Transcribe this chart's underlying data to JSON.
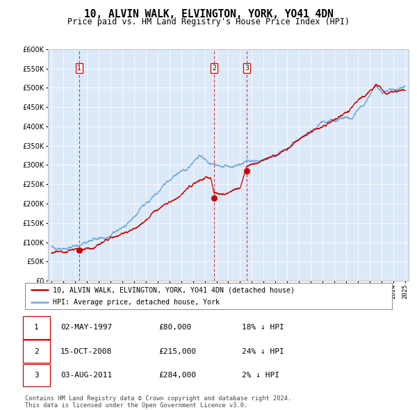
{
  "title": "10, ALVIN WALK, ELVINGTON, YORK, YO41 4DN",
  "subtitle": "Price paid vs. HM Land Registry's House Price Index (HPI)",
  "ylim": [
    0,
    600000
  ],
  "yticks": [
    0,
    50000,
    100000,
    150000,
    200000,
    250000,
    300000,
    350000,
    400000,
    450000,
    500000,
    550000,
    600000
  ],
  "x_start_year": 1995,
  "x_end_year": 2025,
  "plot_bg_color": "#dce9f8",
  "fig_bg_color": "#ffffff",
  "hpi_line_color": "#6fa8dc",
  "price_line_color": "#cc0000",
  "marker_color": "#cc0000",
  "dashed_line_color": "#cc0000",
  "sale_dates_decimal": [
    1997.33,
    2008.79,
    2011.58
  ],
  "sale_prices": [
    80000,
    215000,
    284000
  ],
  "sale_labels": [
    "1",
    "2",
    "3"
  ],
  "legend_label_price": "10, ALVIN WALK, ELVINGTON, YORK, YO41 4DN (detached house)",
  "legend_label_hpi": "HPI: Average price, detached house, York",
  "table_rows": [
    [
      "1",
      "02-MAY-1997",
      "£80,000",
      "18% ↓ HPI"
    ],
    [
      "2",
      "15-OCT-2008",
      "£215,000",
      "24% ↓ HPI"
    ],
    [
      "3",
      "03-AUG-2011",
      "£284,000",
      "2% ↓ HPI"
    ]
  ],
  "footnote": "Contains HM Land Registry data © Crown copyright and database right 2024.\nThis data is licensed under the Open Government Licence v3.0.",
  "hpi_anchors_x": [
    1995.0,
    1997.0,
    1998.5,
    2000.0,
    2002.0,
    2004.0,
    2005.5,
    2007.5,
    2008.5,
    2009.5,
    2010.5,
    2011.5,
    2013.0,
    2014.5,
    2016.0,
    2017.5,
    2019.0,
    2020.5,
    2021.5,
    2022.5,
    2023.0,
    2024.0,
    2025.0
  ],
  "hpi_anchors_y": [
    88000,
    95000,
    108000,
    130000,
    180000,
    225000,
    265000,
    305000,
    290000,
    270000,
    278000,
    290000,
    300000,
    320000,
    355000,
    385000,
    405000,
    420000,
    465000,
    510000,
    490000,
    498000,
    505000
  ],
  "price_anchors_x": [
    1995.0,
    1997.0,
    1997.33,
    1999.0,
    2001.0,
    2003.0,
    2005.0,
    2007.0,
    2008.5,
    2008.79,
    2009.5,
    2010.5,
    2011.0,
    2011.58,
    2012.5,
    2014.0,
    2016.0,
    2018.0,
    2020.0,
    2021.5,
    2022.5,
    2023.5,
    2024.5,
    2025.0
  ],
  "price_anchors_y": [
    72000,
    78000,
    80000,
    90000,
    120000,
    160000,
    200000,
    245000,
    255000,
    215000,
    205000,
    215000,
    222000,
    284000,
    295000,
    315000,
    350000,
    380000,
    415000,
    460000,
    500000,
    480000,
    490000,
    493000
  ]
}
